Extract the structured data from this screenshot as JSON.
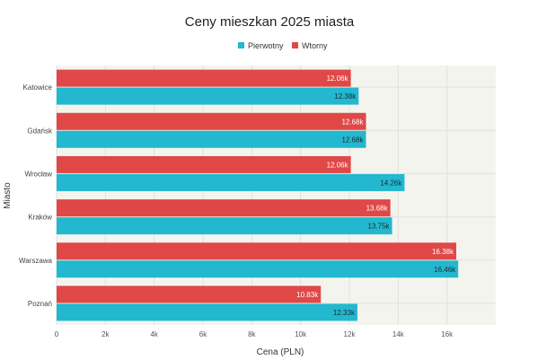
{
  "chart_data": {
    "type": "bar",
    "orientation": "horizontal",
    "title": "Ceny mieszkan 2025 miasta",
    "xlabel": "Cena (PLN)",
    "ylabel": "Miasto",
    "xlim": [
      0,
      18000
    ],
    "xticks": [
      0,
      2000,
      4000,
      6000,
      8000,
      10000,
      12000,
      14000,
      16000
    ],
    "xtick_labels": [
      "0",
      "2k",
      "4k",
      "6k",
      "8k",
      "10k",
      "12k",
      "14k",
      "16k"
    ],
    "grid": true,
    "legend_position": "top-center",
    "categories": [
      "Katowice",
      "Gdańsk",
      "Wrocław",
      "Kraków",
      "Warszawa",
      "Poznań"
    ],
    "series": [
      {
        "name": "Pierwotny",
        "color": "#22b8cf",
        "values": [
          12380,
          12680,
          14260,
          13750,
          16460,
          12330
        ],
        "labels": [
          "12.38k",
          "12.68k",
          "14.26k",
          "13.75k",
          "16.46k",
          "12.33k"
        ]
      },
      {
        "name": "Wtorny",
        "color": "#e04848",
        "values": [
          12060,
          12680,
          12060,
          13680,
          16380,
          10830
        ],
        "labels": [
          "12.06k",
          "12.68k",
          "12.06k",
          "13.68k",
          "16.38k",
          "10.83k"
        ]
      }
    ]
  },
  "colors": {
    "background": "#ffffff",
    "plot_background": "#f4f4ef",
    "grid": "#e2e2dc"
  }
}
